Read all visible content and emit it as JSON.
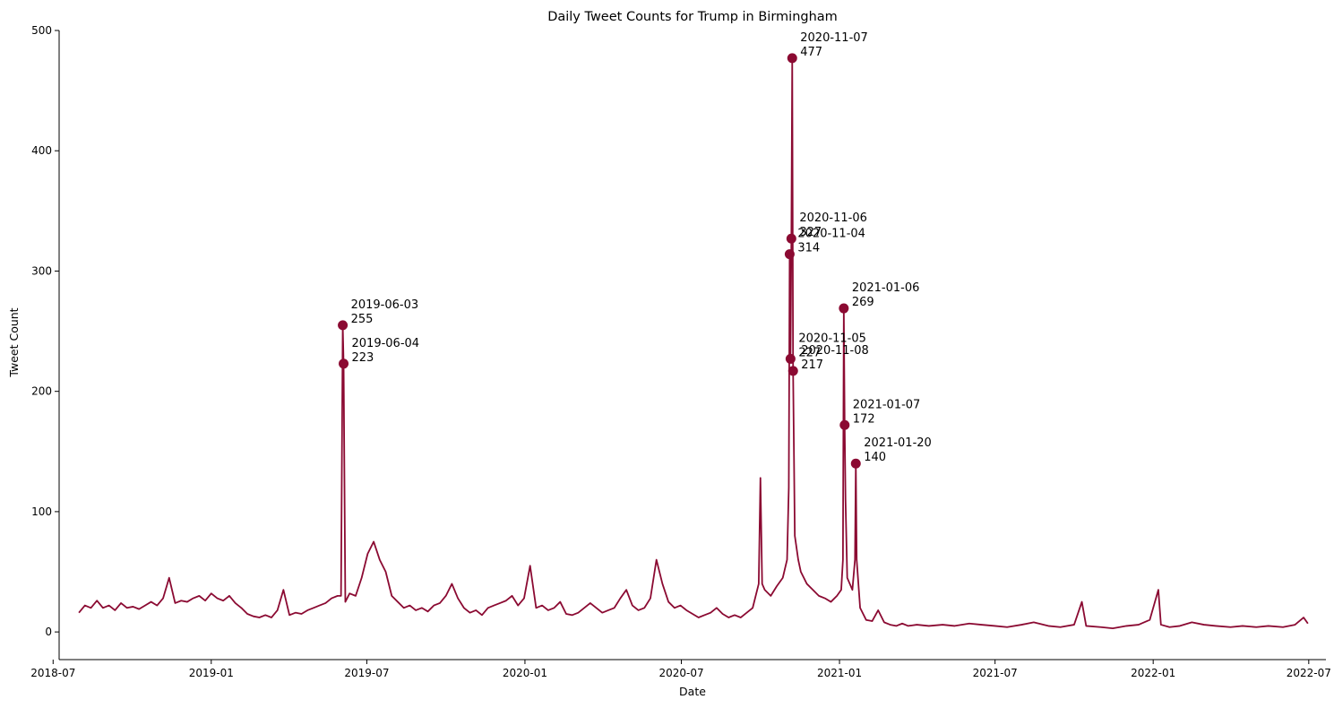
{
  "chart_data": {
    "type": "line",
    "title": "Daily Tweet Counts for Trump in Birmingham",
    "xlabel": "Date",
    "ylabel": "Tweet Count",
    "xlim": [
      "2018-07-08",
      "2022-07-21"
    ],
    "ylim": [
      -23,
      500
    ],
    "grid": false,
    "legend": "none",
    "line_color": "#8b0a32",
    "x_ticks": [
      "2018-07",
      "2019-01",
      "2019-07",
      "2020-01",
      "2020-07",
      "2021-01",
      "2021-07",
      "2022-01",
      "2022-07"
    ],
    "y_ticks": [
      0,
      100,
      200,
      300,
      400,
      500
    ],
    "series": [
      {
        "points": [
          [
            "2018-07-31",
            16
          ],
          [
            "2018-08-07",
            22
          ],
          [
            "2018-08-14",
            20
          ],
          [
            "2018-08-21",
            26
          ],
          [
            "2018-08-28",
            20
          ],
          [
            "2018-09-04",
            22
          ],
          [
            "2018-09-11",
            18
          ],
          [
            "2018-09-18",
            24
          ],
          [
            "2018-09-25",
            20
          ],
          [
            "2018-10-02",
            21
          ],
          [
            "2018-10-09",
            19
          ],
          [
            "2018-10-16",
            22
          ],
          [
            "2018-10-23",
            25
          ],
          [
            "2018-10-30",
            22
          ],
          [
            "2018-11-06",
            28
          ],
          [
            "2018-11-13",
            45
          ],
          [
            "2018-11-20",
            24
          ],
          [
            "2018-11-27",
            26
          ],
          [
            "2018-12-04",
            25
          ],
          [
            "2018-12-11",
            28
          ],
          [
            "2018-12-18",
            30
          ],
          [
            "2018-12-25",
            26
          ],
          [
            "2019-01-01",
            32
          ],
          [
            "2019-01-08",
            28
          ],
          [
            "2019-01-15",
            26
          ],
          [
            "2019-01-22",
            30
          ],
          [
            "2019-01-29",
            24
          ],
          [
            "2019-02-05",
            20
          ],
          [
            "2019-02-12",
            15
          ],
          [
            "2019-02-19",
            13
          ],
          [
            "2019-02-26",
            12
          ],
          [
            "2019-03-05",
            14
          ],
          [
            "2019-03-12",
            12
          ],
          [
            "2019-03-19",
            18
          ],
          [
            "2019-03-26",
            35
          ],
          [
            "2019-04-02",
            14
          ],
          [
            "2019-04-09",
            16
          ],
          [
            "2019-04-16",
            15
          ],
          [
            "2019-04-23",
            18
          ],
          [
            "2019-04-30",
            20
          ],
          [
            "2019-05-07",
            22
          ],
          [
            "2019-05-14",
            24
          ],
          [
            "2019-05-21",
            28
          ],
          [
            "2019-05-28",
            30
          ],
          [
            "2019-06-01",
            30
          ],
          [
            "2019-06-03",
            255
          ],
          [
            "2019-06-04",
            223
          ],
          [
            "2019-06-06",
            25
          ],
          [
            "2019-06-11",
            32
          ],
          [
            "2019-06-18",
            30
          ],
          [
            "2019-06-25",
            45
          ],
          [
            "2019-07-02",
            65
          ],
          [
            "2019-07-09",
            75
          ],
          [
            "2019-07-16",
            60
          ],
          [
            "2019-07-23",
            50
          ],
          [
            "2019-07-30",
            30
          ],
          [
            "2019-08-06",
            25
          ],
          [
            "2019-08-13",
            20
          ],
          [
            "2019-08-20",
            22
          ],
          [
            "2019-08-27",
            18
          ],
          [
            "2019-09-03",
            20
          ],
          [
            "2019-09-10",
            17
          ],
          [
            "2019-09-17",
            22
          ],
          [
            "2019-09-24",
            24
          ],
          [
            "2019-10-01",
            30
          ],
          [
            "2019-10-08",
            40
          ],
          [
            "2019-10-15",
            28
          ],
          [
            "2019-10-22",
            20
          ],
          [
            "2019-10-29",
            16
          ],
          [
            "2019-11-05",
            18
          ],
          [
            "2019-11-12",
            14
          ],
          [
            "2019-11-19",
            20
          ],
          [
            "2019-11-26",
            22
          ],
          [
            "2019-12-03",
            24
          ],
          [
            "2019-12-10",
            26
          ],
          [
            "2019-12-17",
            30
          ],
          [
            "2019-12-24",
            22
          ],
          [
            "2019-12-31",
            28
          ],
          [
            "2020-01-07",
            55
          ],
          [
            "2020-01-14",
            20
          ],
          [
            "2020-01-21",
            22
          ],
          [
            "2020-01-28",
            18
          ],
          [
            "2020-02-04",
            20
          ],
          [
            "2020-02-11",
            25
          ],
          [
            "2020-02-18",
            15
          ],
          [
            "2020-02-25",
            14
          ],
          [
            "2020-03-03",
            16
          ],
          [
            "2020-03-10",
            20
          ],
          [
            "2020-03-17",
            24
          ],
          [
            "2020-03-24",
            20
          ],
          [
            "2020-03-31",
            16
          ],
          [
            "2020-04-07",
            18
          ],
          [
            "2020-04-14",
            20
          ],
          [
            "2020-04-21",
            28
          ],
          [
            "2020-04-28",
            35
          ],
          [
            "2020-05-05",
            22
          ],
          [
            "2020-05-12",
            18
          ],
          [
            "2020-05-19",
            20
          ],
          [
            "2020-05-26",
            28
          ],
          [
            "2020-06-02",
            60
          ],
          [
            "2020-06-09",
            40
          ],
          [
            "2020-06-16",
            25
          ],
          [
            "2020-06-23",
            20
          ],
          [
            "2020-06-30",
            22
          ],
          [
            "2020-07-07",
            18
          ],
          [
            "2020-07-14",
            15
          ],
          [
            "2020-07-21",
            12
          ],
          [
            "2020-07-28",
            14
          ],
          [
            "2020-08-04",
            16
          ],
          [
            "2020-08-11",
            20
          ],
          [
            "2020-08-18",
            15
          ],
          [
            "2020-08-25",
            12
          ],
          [
            "2020-09-01",
            14
          ],
          [
            "2020-09-08",
            12
          ],
          [
            "2020-09-15",
            16
          ],
          [
            "2020-09-22",
            20
          ],
          [
            "2020-09-29",
            40
          ],
          [
            "2020-10-01",
            128
          ],
          [
            "2020-10-03",
            40
          ],
          [
            "2020-10-06",
            35
          ],
          [
            "2020-10-13",
            30
          ],
          [
            "2020-10-20",
            38
          ],
          [
            "2020-10-27",
            45
          ],
          [
            "2020-11-01",
            60
          ],
          [
            "2020-11-03",
            120
          ],
          [
            "2020-11-04",
            314
          ],
          [
            "2020-11-05",
            227
          ],
          [
            "2020-11-06",
            327
          ],
          [
            "2020-11-07",
            477
          ],
          [
            "2020-11-08",
            217
          ],
          [
            "2020-11-10",
            80
          ],
          [
            "2020-11-14",
            60
          ],
          [
            "2020-11-17",
            50
          ],
          [
            "2020-11-24",
            40
          ],
          [
            "2020-12-01",
            35
          ],
          [
            "2020-12-08",
            30
          ],
          [
            "2020-12-15",
            28
          ],
          [
            "2020-12-22",
            25
          ],
          [
            "2020-12-29",
            30
          ],
          [
            "2021-01-03",
            35
          ],
          [
            "2021-01-05",
            60
          ],
          [
            "2021-01-06",
            269
          ],
          [
            "2021-01-07",
            172
          ],
          [
            "2021-01-08",
            110
          ],
          [
            "2021-01-10",
            45
          ],
          [
            "2021-01-13",
            40
          ],
          [
            "2021-01-16",
            35
          ],
          [
            "2021-01-19",
            60
          ],
          [
            "2021-01-20",
            140
          ],
          [
            "2021-01-21",
            60
          ],
          [
            "2021-01-25",
            20
          ],
          [
            "2021-02-01",
            10
          ],
          [
            "2021-02-08",
            9
          ],
          [
            "2021-02-15",
            18
          ],
          [
            "2021-02-22",
            8
          ],
          [
            "2021-03-01",
            6
          ],
          [
            "2021-03-08",
            5
          ],
          [
            "2021-03-15",
            7
          ],
          [
            "2021-03-22",
            5
          ],
          [
            "2021-04-01",
            6
          ],
          [
            "2021-04-15",
            5
          ],
          [
            "2021-05-01",
            6
          ],
          [
            "2021-05-15",
            5
          ],
          [
            "2021-06-01",
            7
          ],
          [
            "2021-06-15",
            6
          ],
          [
            "2021-07-01",
            5
          ],
          [
            "2021-07-15",
            4
          ],
          [
            "2021-08-01",
            6
          ],
          [
            "2021-08-15",
            8
          ],
          [
            "2021-09-01",
            5
          ],
          [
            "2021-09-15",
            4
          ],
          [
            "2021-10-01",
            6
          ],
          [
            "2021-10-10",
            25
          ],
          [
            "2021-10-15",
            5
          ],
          [
            "2021-11-01",
            4
          ],
          [
            "2021-11-15",
            3
          ],
          [
            "2021-12-01",
            5
          ],
          [
            "2021-12-15",
            6
          ],
          [
            "2021-12-28",
            10
          ],
          [
            "2022-01-03",
            25
          ],
          [
            "2022-01-07",
            35
          ],
          [
            "2022-01-10",
            6
          ],
          [
            "2022-01-20",
            4
          ],
          [
            "2022-02-01",
            5
          ],
          [
            "2022-02-15",
            8
          ],
          [
            "2022-03-01",
            6
          ],
          [
            "2022-03-15",
            5
          ],
          [
            "2022-04-01",
            4
          ],
          [
            "2022-04-15",
            5
          ],
          [
            "2022-05-01",
            4
          ],
          [
            "2022-05-15",
            5
          ],
          [
            "2022-06-01",
            4
          ],
          [
            "2022-06-15",
            6
          ],
          [
            "2022-06-25",
            12
          ],
          [
            "2022-06-30",
            7
          ]
        ]
      }
    ],
    "annotations": [
      {
        "date": "2019-06-03",
        "value": 255,
        "label": "2019-06-03",
        "value_label": "255"
      },
      {
        "date": "2019-06-04",
        "value": 223,
        "label": "2019-06-04",
        "value_label": "223"
      },
      {
        "date": "2020-11-07",
        "value": 477,
        "label": "2020-11-07",
        "value_label": "477"
      },
      {
        "date": "2020-11-06",
        "value": 327,
        "label": "2020-11-06",
        "value_label": "327"
      },
      {
        "date": "2020-11-04",
        "value": 314,
        "label": "2020-11-04",
        "value_label": "314"
      },
      {
        "date": "2020-11-05",
        "value": 227,
        "label": "2020-11-05",
        "value_label": "227"
      },
      {
        "date": "2020-11-08",
        "value": 217,
        "label": "2020-11-08",
        "value_label": "217"
      },
      {
        "date": "2021-01-06",
        "value": 269,
        "label": "2021-01-06",
        "value_label": "269"
      },
      {
        "date": "2021-01-07",
        "value": 172,
        "label": "2021-01-07",
        "value_label": "172"
      },
      {
        "date": "2021-01-20",
        "value": 140,
        "label": "2021-01-20",
        "value_label": "140"
      }
    ]
  }
}
